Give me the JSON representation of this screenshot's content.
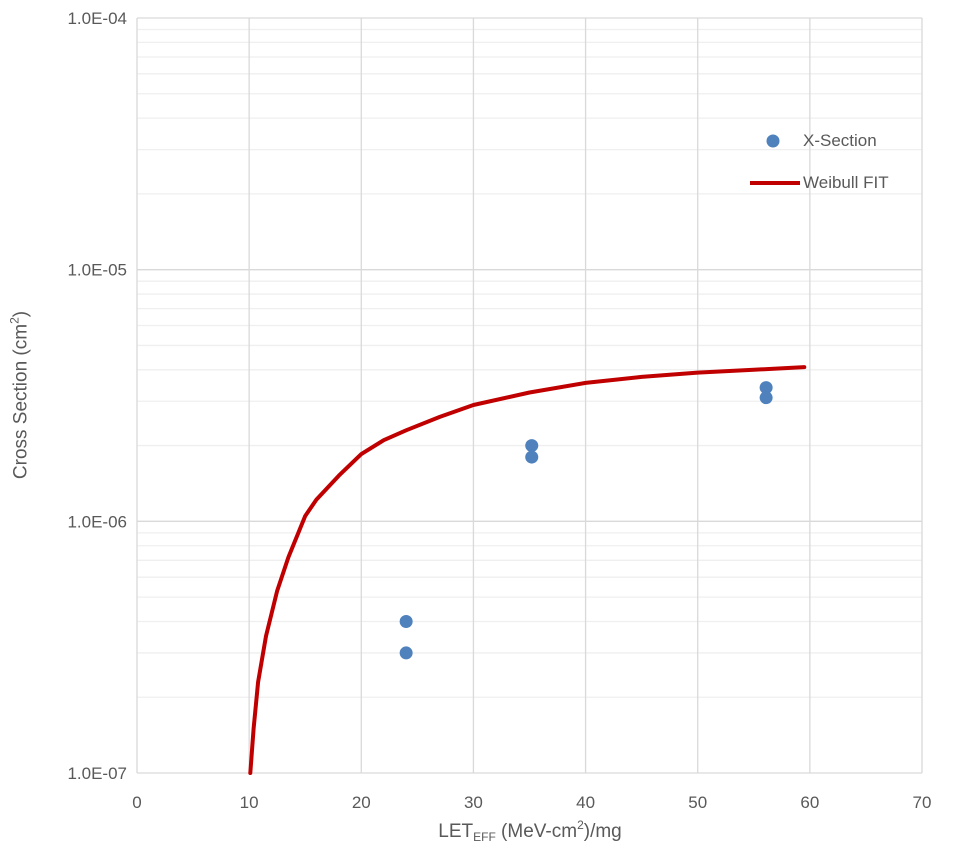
{
  "chart_data": {
    "type": "scatter",
    "xlabel": {
      "main": "LET",
      "sub": "EFF",
      "rest": " (MeV-cm",
      "sup": "2",
      "end": ")/mg"
    },
    "ylabel": {
      "main": "Cross Section (cm",
      "sup": "2",
      "end": ")"
    },
    "xlim": [
      0,
      70
    ],
    "ylim": [
      1e-07,
      0.0001
    ],
    "y_scale": "log",
    "grid": true,
    "legend_position": "top-right",
    "x_ticks": [
      "0",
      "10",
      "20",
      "30",
      "40",
      "50",
      "60",
      "70"
    ],
    "y_ticks": [
      "1.0E-07",
      "1.0E-06",
      "1.0E-05",
      "1.0E-04"
    ],
    "series": [
      {
        "name": "X-Section",
        "kind": "scatter",
        "color": "#4f81bd",
        "x": [
          24.0,
          24.0,
          35.2,
          35.2,
          56.1,
          56.1
        ],
        "y": [
          4e-07,
          3e-07,
          2e-06,
          1.8e-06,
          3.4e-06,
          3.1e-06
        ]
      },
      {
        "name": "Weibull FIT",
        "kind": "line",
        "color": "#c00000",
        "x": [
          10.1,
          10.4,
          10.8,
          11.5,
          12.5,
          13.5,
          15,
          16,
          18,
          20,
          22,
          24,
          27,
          30,
          35,
          40,
          45,
          50,
          55,
          59.5
        ],
        "y": [
          1e-07,
          1.5e-07,
          2.3e-07,
          3.5e-07,
          5.3e-07,
          7.2e-07,
          1.05e-06,
          1.22e-06,
          1.52e-06,
          1.85e-06,
          2.1e-06,
          2.3e-06,
          2.6e-06,
          2.9e-06,
          3.25e-06,
          3.55e-06,
          3.75e-06,
          3.9e-06,
          4e-06,
          4.1e-06
        ]
      }
    ]
  }
}
